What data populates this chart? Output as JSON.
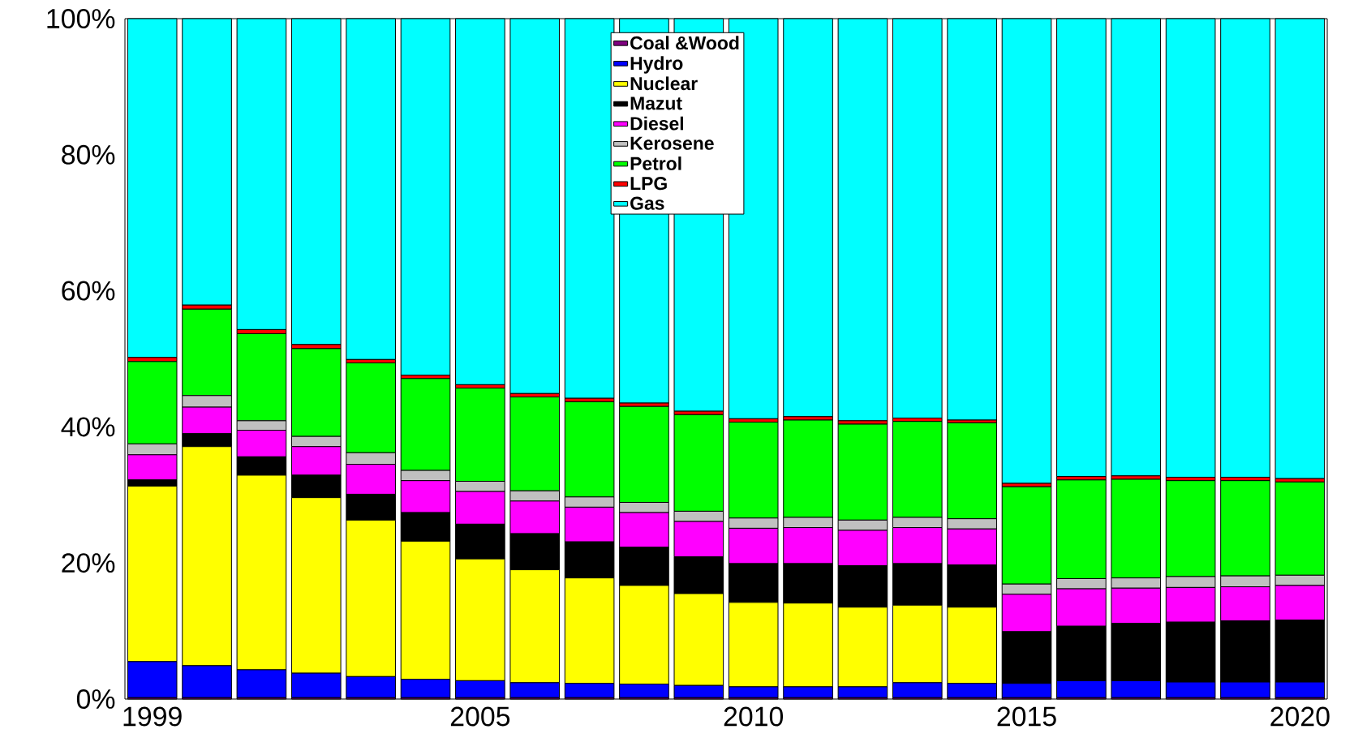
{
  "chart_data": {
    "type": "bar",
    "stacked": true,
    "categories": [
      "1999",
      null,
      null,
      null,
      null,
      null,
      "2005",
      null,
      null,
      null,
      null,
      "2010",
      null,
      null,
      null,
      null,
      "2015",
      null,
      null,
      null,
      null,
      "2020"
    ],
    "ylim": [
      0,
      100
    ],
    "yticks": [
      {
        "value": 0,
        "label": "0%"
      },
      {
        "value": 20,
        "label": "20%"
      },
      {
        "value": 40,
        "label": "40%"
      },
      {
        "value": 60,
        "label": "60%"
      },
      {
        "value": 80,
        "label": "80%"
      },
      {
        "value": 100,
        "label": "100%"
      }
    ],
    "grid": false,
    "legend": "top",
    "series": [
      {
        "name": "Coal &Wood",
        "color": "#800080",
        "values": [
          0.2,
          0.2,
          0.2,
          0.2,
          0.2,
          0.2,
          0.2,
          0.2,
          0.2,
          0.2,
          0.2,
          0.2,
          0.2,
          0.2,
          0.2,
          0.2,
          0.2,
          0.2,
          0.2,
          0.2,
          0.2,
          0.2
        ]
      },
      {
        "name": "Hydro",
        "color": "#0000ff",
        "values": [
          5.3,
          4.7,
          4.1,
          3.6,
          3.1,
          2.7,
          2.5,
          2.2,
          2.1,
          2.0,
          1.8,
          1.6,
          1.6,
          1.6,
          2.2,
          2.1,
          2.1,
          2.5,
          2.5,
          2.3,
          2.3,
          2.3
        ]
      },
      {
        "name": "Nuclear",
        "color": "#ffff00",
        "values": [
          25.8,
          32.2,
          28.6,
          25.8,
          23.0,
          20.3,
          17.9,
          16.6,
          15.5,
          14.5,
          13.5,
          12.4,
          12.3,
          11.7,
          11.4,
          11.2,
          0,
          0,
          0,
          0,
          0,
          0
        ]
      },
      {
        "name": "Mazut",
        "color": "#000000",
        "values": [
          0.9,
          1.9,
          2.7,
          3.3,
          3.8,
          4.2,
          5.1,
          5.3,
          5.3,
          5.6,
          5.4,
          5.7,
          5.8,
          6.1,
          6.1,
          6.2,
          7.6,
          8.0,
          8.4,
          8.8,
          9.0,
          9.1
        ]
      },
      {
        "name": "Diesel",
        "color": "#ff00ff",
        "values": [
          3.7,
          3.9,
          3.9,
          4.2,
          4.4,
          4.7,
          4.8,
          4.8,
          5.1,
          5.1,
          5.2,
          5.2,
          5.3,
          5.2,
          5.3,
          5.3,
          5.5,
          5.5,
          5.2,
          5.1,
          5.0,
          5.1
        ]
      },
      {
        "name": "Kerosene",
        "color": "#c0c0c0",
        "values": [
          1.6,
          1.7,
          1.4,
          1.5,
          1.7,
          1.5,
          1.5,
          1.5,
          1.5,
          1.5,
          1.5,
          1.5,
          1.5,
          1.5,
          1.5,
          1.5,
          1.5,
          1.5,
          1.5,
          1.6,
          1.6,
          1.5
        ]
      },
      {
        "name": "Petrol",
        "color": "#00ff00",
        "values": [
          12.1,
          12.7,
          12.8,
          12.9,
          13.2,
          13.5,
          13.7,
          13.8,
          14.0,
          14.1,
          14.2,
          14.1,
          14.3,
          14.1,
          14.1,
          14.1,
          14.3,
          14.5,
          14.5,
          14.1,
          14.0,
          13.7
        ]
      },
      {
        "name": "LPG",
        "color": "#ff0000",
        "values": [
          0.6,
          0.6,
          0.6,
          0.6,
          0.5,
          0.5,
          0.5,
          0.5,
          0.5,
          0.5,
          0.5,
          0.5,
          0.5,
          0.5,
          0.5,
          0.4,
          0.5,
          0.5,
          0.5,
          0.5,
          0.5,
          0.5
        ]
      },
      {
        "name": "Gas",
        "color": "#00ffff",
        "values": [
          49.8,
          42.1,
          45.7,
          47.9,
          50.1,
          52.4,
          53.8,
          55.1,
          55.8,
          56.5,
          57.7,
          58.8,
          58.5,
          59.1,
          58.7,
          59.0,
          68.3,
          67.3,
          67.2,
          67.4,
          67.4,
          67.6
        ]
      }
    ]
  }
}
